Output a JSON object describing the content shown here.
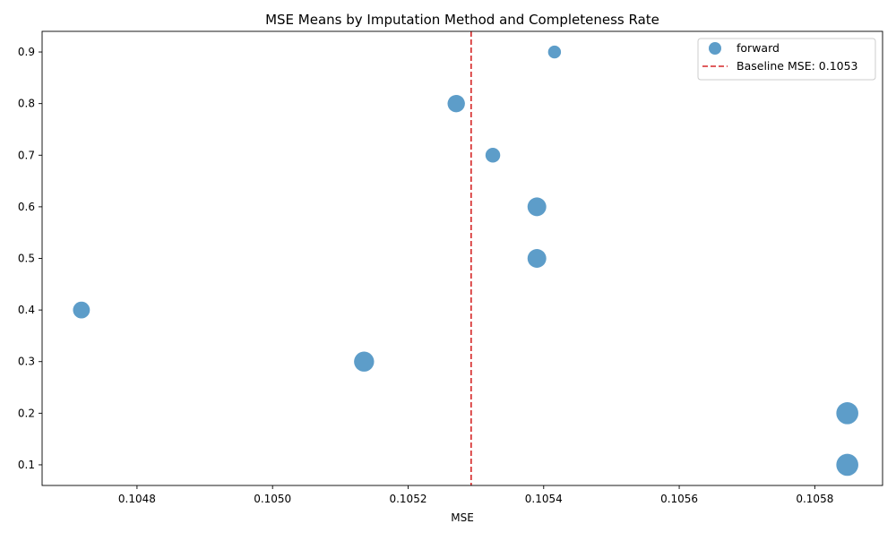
{
  "chart_data": {
    "type": "scatter",
    "title": "MSE Means by Imputation Method and Completeness Rate",
    "xlabel": "MSE",
    "ylabel": "",
    "xlim": [
      0.10466,
      0.1059
    ],
    "ylim": [
      0.06,
      0.94
    ],
    "xticks": [
      0.1048,
      0.105,
      0.1052,
      0.1054,
      0.1056,
      0.1058
    ],
    "xtick_labels": [
      "0.1048",
      "0.1050",
      "0.1052",
      "0.1054",
      "0.1056",
      "0.1058"
    ],
    "yticks": [
      0.1,
      0.2,
      0.3,
      0.4,
      0.5,
      0.6,
      0.7,
      0.8,
      0.9
    ],
    "ytick_labels": [
      "0.1",
      "0.2",
      "0.3",
      "0.4",
      "0.5",
      "0.6",
      "0.7",
      "0.8",
      "0.9"
    ],
    "grid": false,
    "legend_position": "top-right",
    "series": [
      {
        "name": "forward",
        "color": "#1f77b4",
        "points": [
          {
            "x": 0.105848,
            "y": 0.1,
            "size": 290
          },
          {
            "x": 0.105848,
            "y": 0.2,
            "size": 290
          },
          {
            "x": 0.105135,
            "y": 0.3,
            "size": 240
          },
          {
            "x": 0.104718,
            "y": 0.4,
            "size": 170
          },
          {
            "x": 0.10539,
            "y": 0.5,
            "size": 210
          },
          {
            "x": 0.10539,
            "y": 0.6,
            "size": 210
          },
          {
            "x": 0.105325,
            "y": 0.7,
            "size": 130
          },
          {
            "x": 0.105271,
            "y": 0.8,
            "size": 180
          },
          {
            "x": 0.105416,
            "y": 0.9,
            "size": 100
          }
        ]
      }
    ],
    "reference_lines": [
      {
        "orientation": "vertical",
        "x": 0.105293,
        "style": "dashed",
        "color": "#d62728",
        "label": "Baseline MSE: 0.1053"
      }
    ],
    "legend": {
      "entries": [
        "forward",
        "Baseline MSE: 0.1053"
      ]
    }
  }
}
